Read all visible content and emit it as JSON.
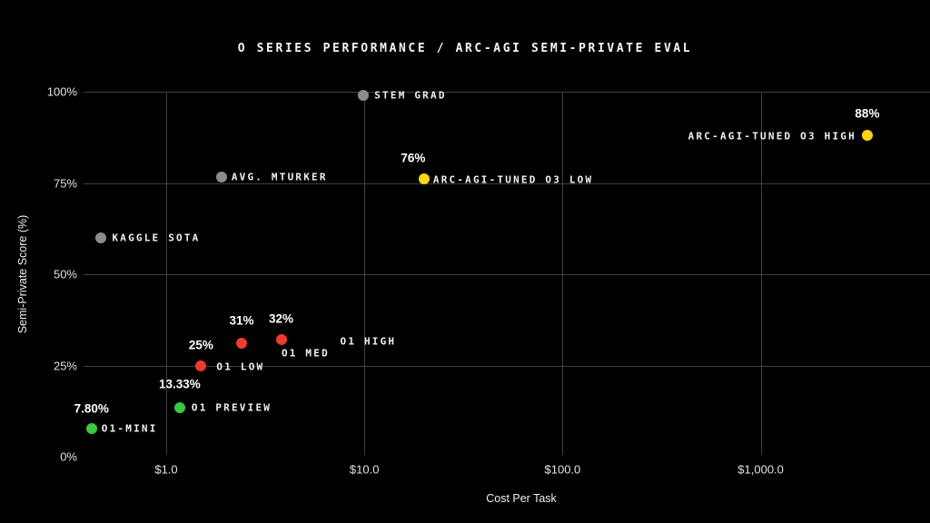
{
  "chart_data": {
    "type": "scatter",
    "title": "O SERIES PERFORMANCE / ARC-AGI SEMI-PRIVATE EVAL",
    "xlabel": "Cost Per Task",
    "ylabel": "Semi-Private Score (%)",
    "x_scale": "log",
    "grid": true,
    "x_ticks": [
      {
        "label": "$1.0",
        "value": 1
      },
      {
        "label": "$10.0",
        "value": 10
      },
      {
        "label": "$100.0",
        "value": 100
      },
      {
        "label": "$1,000.0",
        "value": 1000
      }
    ],
    "y_ticks": [
      {
        "label": "0%",
        "value": 0
      },
      {
        "label": "25%",
        "value": 25
      },
      {
        "label": "50%",
        "value": 50
      },
      {
        "label": "75%",
        "value": 75
      },
      {
        "label": "100%",
        "value": 100
      }
    ],
    "ylim": [
      0,
      100
    ],
    "point_colors": {
      "gray": "#8c8c8c",
      "green": "#3ac940",
      "red": "#ef3b2d",
      "yellow": "#ffd60a"
    },
    "grid_color": "#414141",
    "points": [
      {
        "id": "kaggle-sota",
        "name": "KAGGLE SOTA",
        "cost": 0.47,
        "score": 60,
        "value_label": "",
        "color_key": "gray",
        "name_anchor": "right",
        "name_dx": 12,
        "name_dy": 0,
        "value_dx": 0,
        "value_dy": 0
      },
      {
        "id": "avg-mturker",
        "name": "AVG. MTURKER",
        "cost": 1.9,
        "score": 76.5,
        "value_label": "",
        "color_key": "gray",
        "name_anchor": "right",
        "name_dx": 11,
        "name_dy": 0,
        "value_dx": 0,
        "value_dy": 0
      },
      {
        "id": "stem-grad",
        "name": "STEM GRAD",
        "cost": 9.9,
        "score": 99,
        "value_label": "",
        "color_key": "gray",
        "name_anchor": "right",
        "name_dx": 12,
        "name_dy": 0,
        "value_dx": 0,
        "value_dy": 0
      },
      {
        "id": "o1-mini",
        "name": "O1-MINI",
        "cost": 0.42,
        "score": 7.8,
        "value_label": "7.80%",
        "color_key": "green",
        "name_anchor": "right",
        "name_dx": 11,
        "name_dy": 0,
        "value_dx": 0,
        "value_dy": -22
      },
      {
        "id": "o1-preview",
        "name": "O1 PREVIEW",
        "cost": 1.17,
        "score": 13.33,
        "value_label": "13.33%",
        "color_key": "green",
        "name_anchor": "right",
        "name_dx": 13,
        "name_dy": 0,
        "value_dx": 0,
        "value_dy": -26
      },
      {
        "id": "o1-low",
        "name": "O1 LOW",
        "cost": 1.5,
        "score": 25,
        "value_label": "25%",
        "color_key": "red",
        "name_anchor": "right",
        "name_dx": 17,
        "name_dy": 1,
        "value_dx": 0,
        "value_dy": -23
      },
      {
        "id": "o1-med",
        "name": "O1 MED",
        "cost": 2.4,
        "score": 31,
        "value_label": "31%",
        "color_key": "red",
        "name_anchor": "right",
        "name_dx": 44,
        "name_dy": 11,
        "value_dx": 0,
        "value_dy": -25
      },
      {
        "id": "o1-high",
        "name": "O1 HIGH",
        "cost": 3.8,
        "score": 32,
        "value_label": "32%",
        "color_key": "red",
        "name_anchor": "right",
        "name_dx": 65,
        "name_dy": 2,
        "value_dx": 0,
        "value_dy": -23
      },
      {
        "id": "arc-agi-tuned-o3-low",
        "name": "ARC-AGI-TUNED O3 LOW",
        "cost": 20,
        "score": 76,
        "value_label": "76%",
        "color_key": "yellow",
        "name_anchor": "right",
        "name_dx": 10,
        "name_dy": 1,
        "value_dx": -12,
        "value_dy": -23
      },
      {
        "id": "arc-agi-tuned-o3-high",
        "name": "ARC-AGI-TUNED O3 HIGH",
        "cost": 3450,
        "score": 88,
        "value_label": "88%",
        "color_key": "yellow",
        "name_anchor": "left",
        "name_dx": -12,
        "name_dy": 1,
        "value_dx": 0,
        "value_dy": -24
      }
    ]
  }
}
